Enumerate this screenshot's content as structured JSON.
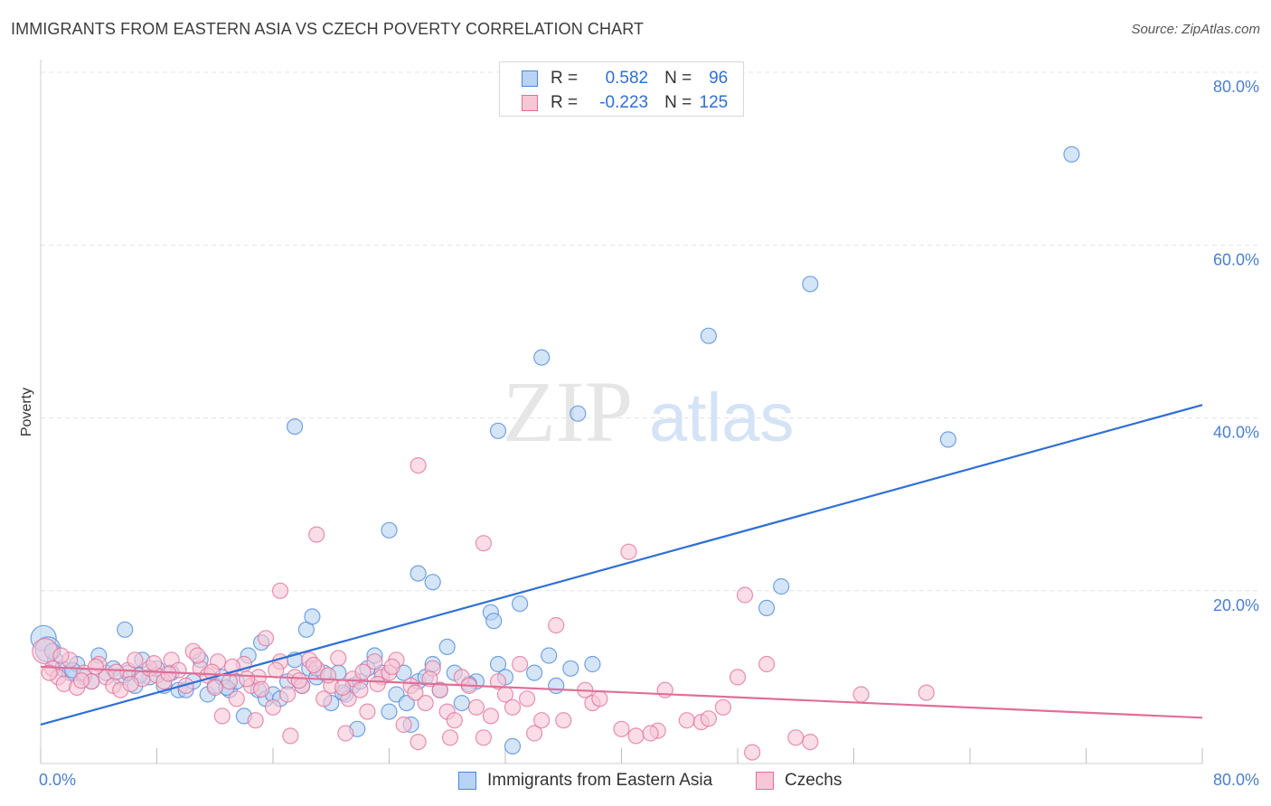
{
  "title": "IMMIGRANTS FROM EASTERN ASIA VS CZECH POVERTY CORRELATION CHART",
  "source": "Source: ZipAtlas.com",
  "watermark": {
    "zip": "ZIP",
    "atlas": "atlas"
  },
  "legend": {
    "r_label": "R =",
    "n_label": "N =",
    "rows": [
      {
        "name": "Immigrants from Eastern Asia",
        "r": "0.582",
        "n": "96",
        "color": "#4a86d8",
        "fill": "#b8d3f3"
      },
      {
        "name": "Czechs",
        "r": "-0.223",
        "n": "125",
        "color": "#e06f97",
        "fill": "#f7c7d6"
      }
    ]
  },
  "chart_data": {
    "type": "scatter",
    "title": "IMMIGRANTS FROM EASTERN ASIA VS CZECH POVERTY CORRELATION CHART",
    "xlabel": "",
    "ylabel": "Poverty",
    "xlim": [
      0,
      80
    ],
    "ylim": [
      0,
      80
    ],
    "x_tick_labels": [
      "0.0%",
      "80.0%"
    ],
    "y_tick_labels": [
      "20.0%",
      "40.0%",
      "60.0%",
      "80.0%"
    ],
    "y_ticks": [
      20,
      40,
      60,
      80
    ],
    "x_minor_ticks": [
      0,
      8,
      16,
      24,
      32,
      40,
      48,
      56,
      64,
      72,
      80
    ],
    "grid": true,
    "series": [
      {
        "name": "Immigrants from Eastern Asia",
        "color": "#4a86d8",
        "fill": "#b8d3f3",
        "trend": {
          "x": [
            0,
            80
          ],
          "y": [
            4.5,
            41.5
          ]
        },
        "points": [
          [
            0.2,
            14.5
          ],
          [
            0.5,
            13.2
          ],
          [
            1,
            12
          ],
          [
            1.5,
            11
          ],
          [
            2,
            10.5
          ],
          [
            2.5,
            11.5
          ],
          [
            3,
            10
          ],
          [
            3.5,
            9.5
          ],
          [
            4,
            12.5
          ],
          [
            4.5,
            10.5
          ],
          [
            5,
            11
          ],
          [
            5.5,
            10
          ],
          [
            5.8,
            15.5
          ],
          [
            6,
            10.5
          ],
          [
            6.5,
            9
          ],
          [
            7,
            12
          ],
          [
            7.5,
            10
          ],
          [
            8,
            11
          ],
          [
            8.5,
            9
          ],
          [
            9,
            10.5
          ],
          [
            9.5,
            8.5
          ],
          [
            10,
            8.5
          ],
          [
            10.5,
            9.5
          ],
          [
            11,
            12
          ],
          [
            11.5,
            8
          ],
          [
            12,
            9
          ],
          [
            12.5,
            10
          ],
          [
            13,
            8.5
          ],
          [
            13.5,
            9.5
          ],
          [
            14,
            5.5
          ],
          [
            14.3,
            12.5
          ],
          [
            15,
            8.5
          ],
          [
            15.2,
            14
          ],
          [
            15.5,
            7.5
          ],
          [
            16,
            8
          ],
          [
            16.5,
            7.5
          ],
          [
            17,
            9.5
          ],
          [
            17.5,
            12
          ],
          [
            18,
            9
          ],
          [
            18.3,
            15.5
          ],
          [
            18.5,
            11
          ],
          [
            18.7,
            17
          ],
          [
            19,
            10
          ],
          [
            19.5,
            10.5
          ],
          [
            20,
            7
          ],
          [
            20.5,
            10.5
          ],
          [
            21,
            8
          ],
          [
            21.5,
            9
          ],
          [
            21.8,
            4
          ],
          [
            22,
            9.5
          ],
          [
            22.5,
            11
          ],
          [
            23,
            12.5
          ],
          [
            23.5,
            10.5
          ],
          [
            24,
            6
          ],
          [
            24.5,
            8
          ],
          [
            25,
            10.5
          ],
          [
            25.2,
            7
          ],
          [
            25.5,
            4.5
          ],
          [
            26,
            9.5
          ],
          [
            26.5,
            10
          ],
          [
            27,
            11.5
          ],
          [
            27.5,
            8.5
          ],
          [
            28,
            13.5
          ],
          [
            28.5,
            10.5
          ],
          [
            29,
            7
          ],
          [
            30,
            9.5
          ],
          [
            31,
            17.5
          ],
          [
            31.2,
            16.5
          ],
          [
            31.5,
            11.5
          ],
          [
            32,
            10
          ],
          [
            32.5,
            2
          ],
          [
            33,
            18.5
          ],
          [
            34,
            10.5
          ],
          [
            35,
            12.5
          ],
          [
            35.5,
            9
          ],
          [
            36.5,
            11
          ],
          [
            38,
            11.5
          ],
          [
            17.5,
            39
          ],
          [
            24,
            27
          ],
          [
            26,
            22
          ],
          [
            27,
            21
          ],
          [
            31.5,
            38.5
          ],
          [
            34.5,
            47
          ],
          [
            37,
            40.5
          ],
          [
            46,
            49.5
          ],
          [
            53,
            55.5
          ],
          [
            51,
            20.5
          ],
          [
            50,
            18
          ],
          [
            62.5,
            37.5
          ],
          [
            71,
            70.5
          ],
          [
            0.8,
            13
          ],
          [
            2.2,
            10.8
          ],
          [
            6.8,
            10.2
          ],
          [
            12.8,
            8.8
          ],
          [
            20.8,
            8.2
          ],
          [
            29.5,
            9.2
          ]
        ]
      },
      {
        "name": "Czechs",
        "color": "#e06f97",
        "fill": "#f7c7d6",
        "trend": {
          "x": [
            0,
            80
          ],
          "y": [
            11.2,
            5.3
          ]
        },
        "points": [
          [
            0.3,
            13
          ],
          [
            0.8,
            11
          ],
          [
            1.2,
            10
          ],
          [
            1.6,
            9.2
          ],
          [
            2,
            12
          ],
          [
            2.5,
            8.8
          ],
          [
            3,
            10.5
          ],
          [
            3.5,
            9.5
          ],
          [
            4,
            11.5
          ],
          [
            4.5,
            10
          ],
          [
            5,
            9
          ],
          [
            5.5,
            8.5
          ],
          [
            6,
            10.8
          ],
          [
            6.5,
            12
          ],
          [
            7,
            9.8
          ],
          [
            7.5,
            11
          ],
          [
            8,
            10.2
          ],
          [
            8.5,
            9.5
          ],
          [
            9,
            12
          ],
          [
            9.5,
            10.8
          ],
          [
            10,
            9
          ],
          [
            10.5,
            13
          ],
          [
            11,
            11
          ],
          [
            11.5,
            10.2
          ],
          [
            12,
            8.8
          ],
          [
            12.2,
            11.8
          ],
          [
            12.5,
            5.5
          ],
          [
            13,
            9.5
          ],
          [
            13.5,
            7.5
          ],
          [
            14,
            11.5
          ],
          [
            14.5,
            9
          ],
          [
            14.8,
            5
          ],
          [
            15,
            10
          ],
          [
            15.5,
            14.5
          ],
          [
            16,
            6.5
          ],
          [
            16.5,
            11.8
          ],
          [
            17,
            8
          ],
          [
            17.2,
            3.2
          ],
          [
            17.5,
            10
          ],
          [
            18,
            9
          ],
          [
            18.5,
            12
          ],
          [
            19,
            11
          ],
          [
            19.5,
            7.5
          ],
          [
            20,
            9
          ],
          [
            20.5,
            12.2
          ],
          [
            21,
            3.5
          ],
          [
            21.2,
            7.5
          ],
          [
            21.5,
            9.8
          ],
          [
            22,
            8.5
          ],
          [
            22.5,
            6
          ],
          [
            23,
            11.8
          ],
          [
            23.5,
            10
          ],
          [
            24,
            10.5
          ],
          [
            24.5,
            12
          ],
          [
            25,
            4.5
          ],
          [
            25.5,
            9
          ],
          [
            26,
            2.5
          ],
          [
            26.5,
            7
          ],
          [
            27,
            11
          ],
          [
            27.5,
            8.5
          ],
          [
            28,
            6
          ],
          [
            28.2,
            3
          ],
          [
            28.5,
            5
          ],
          [
            29,
            10
          ],
          [
            29.5,
            9
          ],
          [
            30,
            6.5
          ],
          [
            30.5,
            3
          ],
          [
            31,
            5.5
          ],
          [
            31.5,
            9.5
          ],
          [
            32,
            8
          ],
          [
            32.5,
            6.5
          ],
          [
            33,
            11.5
          ],
          [
            33.5,
            7.5
          ],
          [
            34,
            3.5
          ],
          [
            34.5,
            5
          ],
          [
            36,
            5
          ],
          [
            37.5,
            8.5
          ],
          [
            38,
            7
          ],
          [
            40,
            4
          ],
          [
            41,
            3.2
          ],
          [
            42.5,
            3.8
          ],
          [
            43,
            8.5
          ],
          [
            44.5,
            5
          ],
          [
            45.5,
            4.8
          ],
          [
            46,
            5.2
          ],
          [
            47,
            6.5
          ],
          [
            48,
            10
          ],
          [
            49,
            1.3
          ],
          [
            50,
            11.5
          ],
          [
            52,
            3
          ],
          [
            53,
            2.5
          ],
          [
            56.5,
            8
          ],
          [
            61,
            8.2
          ],
          [
            26,
            34.5
          ],
          [
            19,
            26.5
          ],
          [
            30.5,
            25.5
          ],
          [
            16.5,
            20
          ],
          [
            40.5,
            24.5
          ],
          [
            48.5,
            19.5
          ],
          [
            35.5,
            16
          ],
          [
            0.6,
            10.5
          ],
          [
            1.4,
            12.5
          ],
          [
            2.8,
            9.6
          ],
          [
            3.8,
            11.2
          ],
          [
            5.2,
            10.6
          ],
          [
            6.2,
            9.2
          ],
          [
            7.8,
            11.6
          ],
          [
            8.8,
            10.4
          ],
          [
            10.8,
            12.5
          ],
          [
            11.8,
            10.6
          ],
          [
            13.2,
            11.2
          ],
          [
            14.2,
            9.8
          ],
          [
            15.2,
            8.6
          ],
          [
            16.2,
            10.8
          ],
          [
            17.8,
            9.6
          ],
          [
            18.8,
            11.4
          ],
          [
            19.8,
            10.2
          ],
          [
            20.8,
            8.8
          ],
          [
            22.2,
            10.6
          ],
          [
            23.2,
            9.2
          ],
          [
            24.2,
            11.2
          ],
          [
            25.8,
            8.2
          ],
          [
            26.8,
            9.8
          ],
          [
            38.5,
            7.5
          ],
          [
            42,
            3.5
          ]
        ]
      }
    ]
  }
}
